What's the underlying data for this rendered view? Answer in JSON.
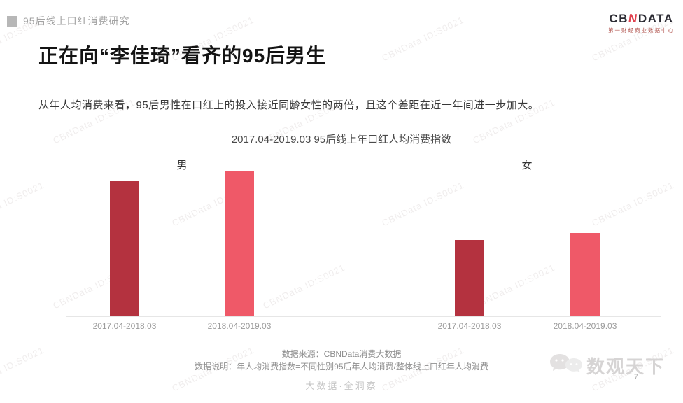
{
  "header": {
    "section_label": "95后线上口红消费研究",
    "brand": {
      "prefix": "CB",
      "accent": "N",
      "suffix": "DATA",
      "tagline": "第一财经商业数据中心"
    }
  },
  "title": "正在向“李佳琦”看齐的95后男生",
  "subtitle": "从年人均消费来看，95后男性在口红上的投入接近同龄女性的两倍，且这个差距在近一年间进一步加大。",
  "chart_data": {
    "type": "bar",
    "title": "2017.04-2019.03 95后线上年口红人均消费指数",
    "xlabel": "",
    "ylabel": "年口红人均消费指数",
    "ylim": [
      0,
      2.2
    ],
    "grid": false,
    "value_axis_shown": false,
    "categories": [
      "2017.04-2018.03",
      "2018.04-2019.03"
    ],
    "groups": [
      {
        "label": "男",
        "bars": [
          {
            "category": "2017.04-2018.03",
            "value": 1.93,
            "color": "#b4323f"
          },
          {
            "category": "2018.04-2019.03",
            "value": 2.07,
            "color": "#ef5968"
          }
        ]
      },
      {
        "label": "女",
        "bars": [
          {
            "category": "2017.04-2018.03",
            "value": 1.09,
            "color": "#b4323f"
          },
          {
            "category": "2018.04-2019.03",
            "value": 1.19,
            "color": "#ef5968"
          }
        ]
      }
    ]
  },
  "footer": {
    "source": "数据来源：CBNData消费大数据",
    "note": "数据说明：年人均消费指数=不同性别95后年人均消费/整体线上口红年人均消费",
    "slogan": "大数据·全洞察"
  },
  "corner_logo": {
    "text": "数观天下",
    "page_number": "7"
  },
  "watermark": {
    "text": "CBNData ID:S0021"
  },
  "colors": {
    "bar_dark": "#b4323f",
    "bar_light": "#ef5968",
    "brand_accent": "#e0414e"
  }
}
